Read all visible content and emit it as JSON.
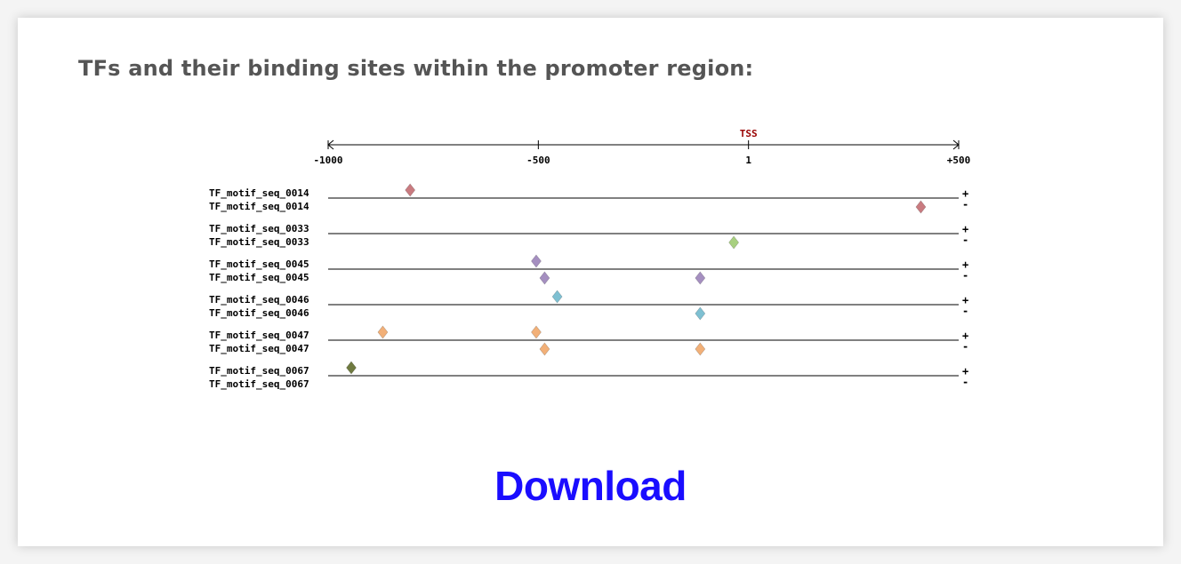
{
  "heading": "TFs and their binding sites within the promoter region:",
  "download_label": "Download",
  "colors": {
    "link": "#1a0dff",
    "tss": "#990000",
    "heading": "#555555"
  },
  "chart_data": {
    "type": "scatter",
    "axis": {
      "xlim": [
        -1000,
        500
      ],
      "ticks": [
        {
          "value": -1000,
          "label": "-1000"
        },
        {
          "value": -500,
          "label": "-500"
        },
        {
          "value": 0,
          "label": "1"
        },
        {
          "value": 500,
          "label": "+500"
        }
      ],
      "tss_label": "TSS",
      "tss_value": 0
    },
    "strand_labels": {
      "plus": "+",
      "minus": "-"
    },
    "tracks": [
      {
        "name": "TF_motif_seq_0014",
        "color": "#c97b80",
        "plus": [
          -805
        ],
        "minus": [
          410
        ]
      },
      {
        "name": "TF_motif_seq_0033",
        "color": "#a8d080",
        "plus": [],
        "minus": [
          -35
        ]
      },
      {
        "name": "TF_motif_seq_0045",
        "color": "#a58fc0",
        "plus": [
          -505
        ],
        "minus": [
          -485,
          -115
        ]
      },
      {
        "name": "TF_motif_seq_0046",
        "color": "#7ec0d2",
        "plus": [
          -455
        ],
        "minus": [
          -115
        ]
      },
      {
        "name": "TF_motif_seq_0047",
        "color": "#f2b078",
        "plus": [
          -870,
          -505
        ],
        "minus": [
          -485,
          -115
        ]
      },
      {
        "name": "TF_motif_seq_0067",
        "color": "#6f7a40",
        "plus": [
          -945
        ],
        "minus": []
      }
    ]
  }
}
